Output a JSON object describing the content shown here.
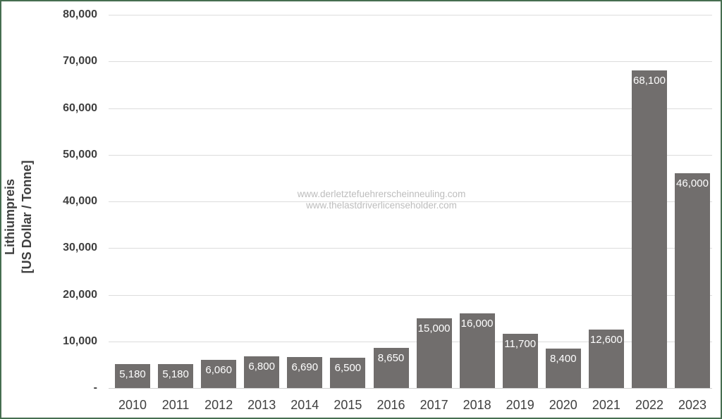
{
  "watermark": {
    "line1": "www.derletztefuehrerscheinneuling.com",
    "line2": "www.thelastdriverlicenseholder.com"
  },
  "chart_data": {
    "type": "bar",
    "title": "",
    "xlabel": "",
    "ylabel_line1": "Lithiumpreis",
    "ylabel_line2": "[US Dollar / Tonne]",
    "categories": [
      "2010",
      "2011",
      "2012",
      "2013",
      "2014",
      "2015",
      "2016",
      "2017",
      "2018",
      "2019",
      "2020",
      "2021",
      "2022",
      "2023"
    ],
    "values": [
      5180,
      5180,
      6060,
      6800,
      6690,
      6500,
      8650,
      15000,
      16000,
      11700,
      8400,
      12600,
      68100,
      46000
    ],
    "value_labels": [
      "5,180",
      "5,180",
      "6,060",
      "6,800",
      "6,690",
      "6,500",
      "8,650",
      "15,000",
      "16,000",
      "11,700",
      "8,400",
      "12,600",
      "68,100",
      "46,000"
    ],
    "ylim": [
      0,
      80000
    ],
    "y_ticks": [
      {
        "value": 0,
        "label": "-"
      },
      {
        "value": 10000,
        "label": "10,000"
      },
      {
        "value": 20000,
        "label": "20,000"
      },
      {
        "value": 30000,
        "label": "30,000"
      },
      {
        "value": 40000,
        "label": "40,000"
      },
      {
        "value": 50000,
        "label": "50,000"
      },
      {
        "value": 60000,
        "label": "60,000"
      },
      {
        "value": 70000,
        "label": "70,000"
      },
      {
        "value": 80000,
        "label": "80,000"
      }
    ],
    "grid": true,
    "legend": false,
    "bar_color": "#716E6D",
    "bar_label_color": "#FFFFFF",
    "axis_text_color": "#3F3F3F",
    "gridline_color": "#DCDCDC",
    "watermark_color": "#BDBDBD",
    "frame_border_color": "#466E50"
  }
}
